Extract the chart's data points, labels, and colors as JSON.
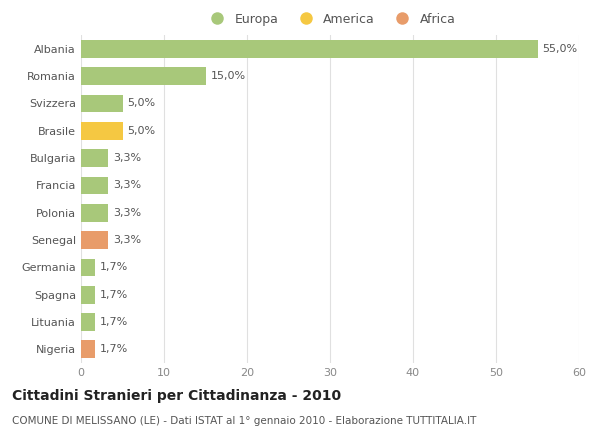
{
  "countries": [
    "Albania",
    "Romania",
    "Svizzera",
    "Brasile",
    "Bulgaria",
    "Francia",
    "Polonia",
    "Senegal",
    "Germania",
    "Spagna",
    "Lituania",
    "Nigeria"
  ],
  "values": [
    55.0,
    15.0,
    5.0,
    5.0,
    3.3,
    3.3,
    3.3,
    3.3,
    1.7,
    1.7,
    1.7,
    1.7
  ],
  "labels": [
    "55,0%",
    "15,0%",
    "5,0%",
    "5,0%",
    "3,3%",
    "3,3%",
    "3,3%",
    "3,3%",
    "1,7%",
    "1,7%",
    "1,7%",
    "1,7%"
  ],
  "categories": [
    "Europa",
    "America",
    "Africa"
  ],
  "bar_colors": [
    "#a8c87a",
    "#a8c87a",
    "#a8c87a",
    "#f5c842",
    "#a8c87a",
    "#a8c87a",
    "#a8c87a",
    "#e89c6a",
    "#a8c87a",
    "#a8c87a",
    "#a8c87a",
    "#e89c6a"
  ],
  "legend_colors": [
    "#a8c87a",
    "#f5c842",
    "#e89c6a"
  ],
  "title": "Cittadini Stranieri per Cittadinanza - 2010",
  "subtitle": "COMUNE DI MELISSANO (LE) - Dati ISTAT al 1° gennaio 2010 - Elaborazione TUTTITALIA.IT",
  "xlim": [
    0,
    60
  ],
  "xticks": [
    0,
    10,
    20,
    30,
    40,
    50,
    60
  ],
  "background_color": "#ffffff",
  "grid_color": "#e0e0e0",
  "label_fontsize": 8,
  "tick_fontsize": 8,
  "title_fontsize": 10,
  "subtitle_fontsize": 7.5,
  "legend_fontsize": 9
}
